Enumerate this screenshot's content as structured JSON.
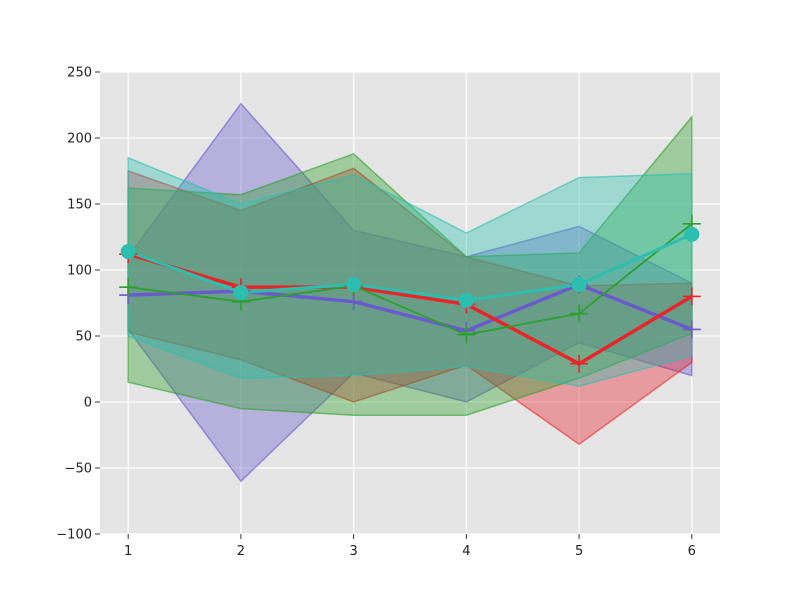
{
  "chart_data": {
    "type": "line",
    "x": [
      1,
      2,
      3,
      4,
      5,
      6
    ],
    "xticks": [
      1,
      2,
      3,
      4,
      5,
      6
    ],
    "yticks": [
      -100,
      -50,
      0,
      50,
      100,
      150,
      200,
      250
    ],
    "xlim": [
      0.75,
      6.25
    ],
    "ylim": [
      -100,
      250
    ],
    "grid": true,
    "series": [
      {
        "color": "#6a5acd",
        "marker": "+",
        "values": [
          81,
          84,
          76,
          54,
          89,
          55
        ],
        "lower": [
          55,
          -60,
          22,
          0,
          45,
          20
        ],
        "upper": [
          110,
          226,
          130,
          110,
          133,
          90
        ]
      },
      {
        "color": "#e8262a",
        "marker": "+",
        "values": [
          112,
          87,
          87,
          74,
          29,
          80
        ],
        "lower": [
          53,
          32,
          0,
          28,
          -32,
          30
        ],
        "upper": [
          175,
          145,
          177,
          110,
          88,
          90
        ]
      },
      {
        "color": "#2ca02c",
        "marker": "+",
        "values": [
          87,
          76,
          88,
          51,
          67,
          135
        ],
        "lower": [
          15,
          -5,
          -10,
          -10,
          18,
          52
        ],
        "upper": [
          162,
          157,
          188,
          110,
          113,
          216
        ]
      },
      {
        "color": "#2cbfb0",
        "marker": "o",
        "values": [
          114,
          83,
          89,
          77,
          89,
          127
        ],
        "lower": [
          50,
          18,
          20,
          27,
          12,
          35
        ],
        "upper": [
          185,
          150,
          172,
          128,
          170,
          173
        ]
      }
    ]
  }
}
